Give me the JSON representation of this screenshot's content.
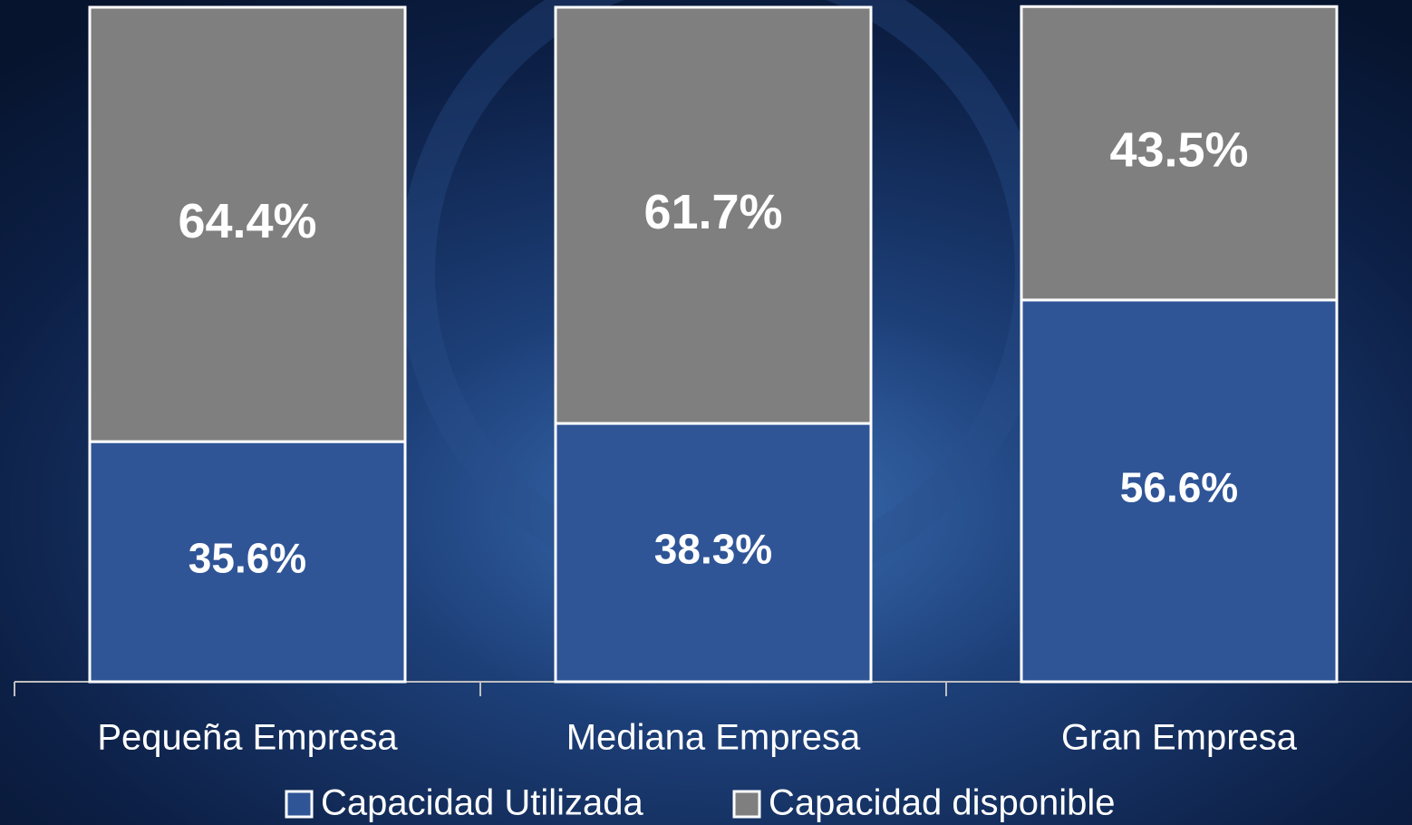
{
  "chart_data": {
    "type": "stacked_bar",
    "categories": [
      "Pequeña Empresa",
      "Mediana Empresa",
      "Gran Empresa"
    ],
    "series": [
      {
        "name": "Capacidad Utilizada",
        "color": "#2f5597",
        "values": [
          35.6,
          38.3,
          56.6
        ],
        "value_labels": [
          "35.6%",
          "38.3%",
          "56.6%"
        ]
      },
      {
        "name": "Capacidad disponible",
        "color": "#7f7f7f",
        "values": [
          64.4,
          61.7,
          43.5
        ],
        "value_labels": [
          "64.4%",
          "61.7%",
          "43.5%"
        ]
      }
    ],
    "ylim": [
      0,
      100
    ],
    "legend": "bottom"
  }
}
